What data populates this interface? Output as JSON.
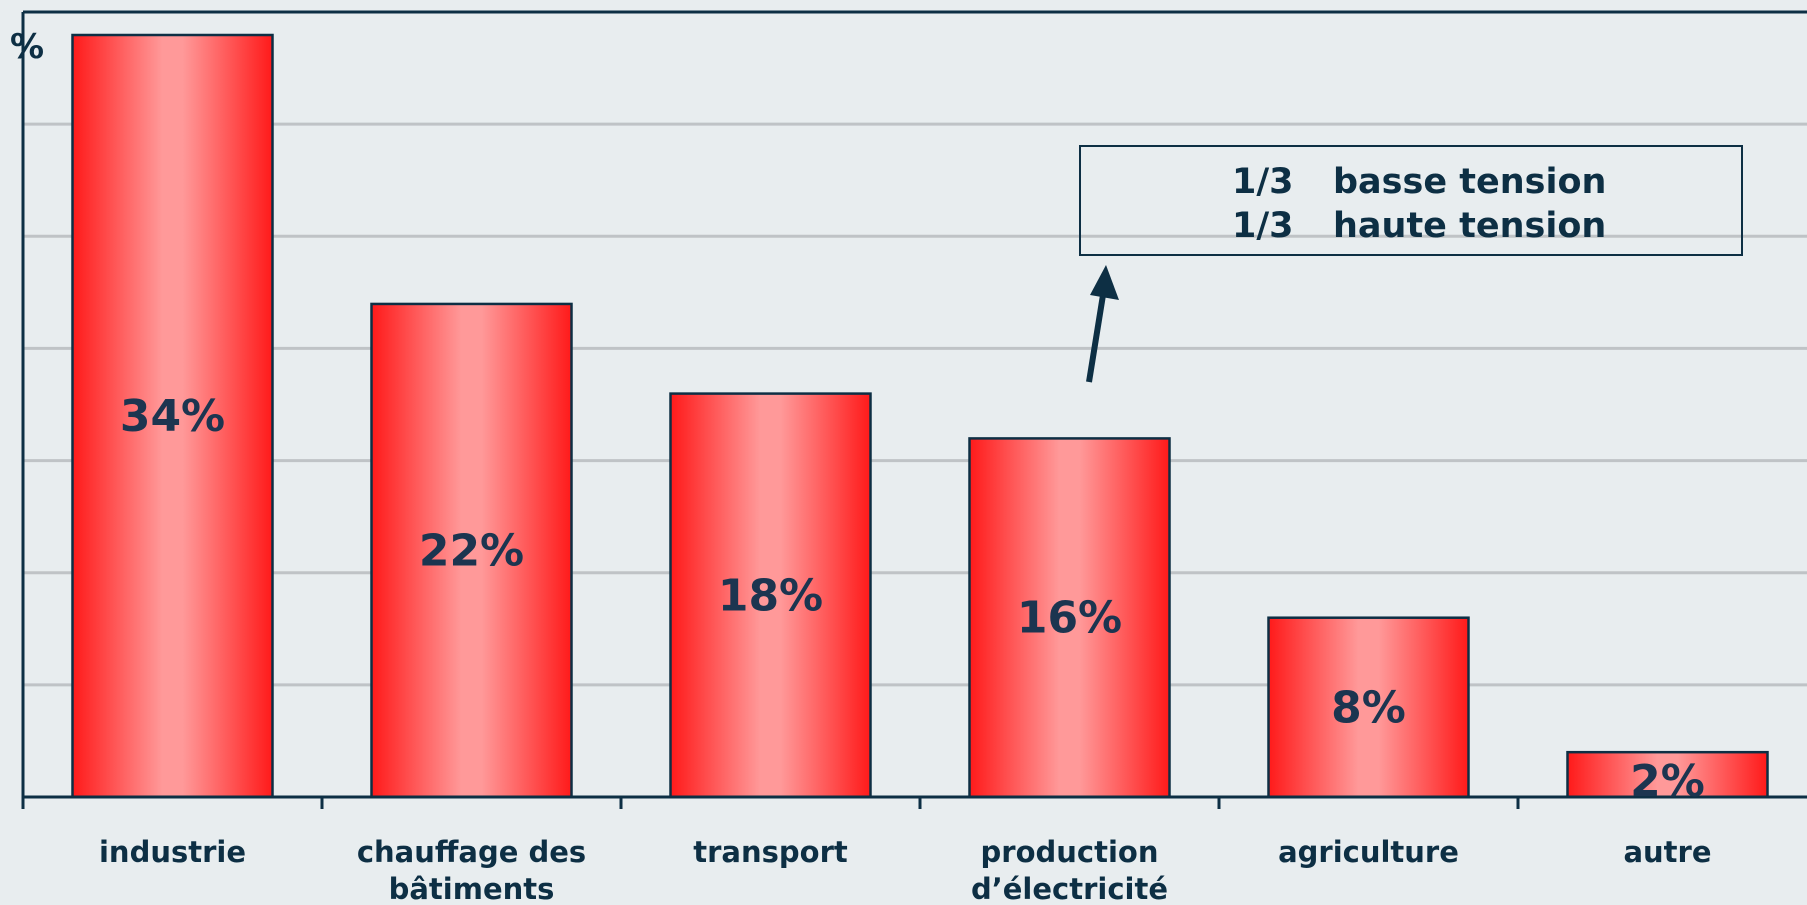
{
  "chart_data": {
    "type": "bar",
    "ylabel": "%",
    "ylim": [
      0,
      34
    ],
    "grid": true,
    "categories": [
      [
        "industrie"
      ],
      [
        "chauffage des",
        "bâtiments"
      ],
      [
        "transport"
      ],
      [
        "production",
        "d’électricité"
      ],
      [
        "agriculture"
      ],
      [
        "autre"
      ]
    ],
    "values": [
      34,
      22,
      18,
      16,
      8,
      2
    ],
    "data_labels": [
      "34%",
      "22%",
      "18%",
      "16%",
      "8%",
      "2%"
    ],
    "annotation": {
      "lines": [
        {
          "fraction": "1/3",
          "text": "basse tension"
        },
        {
          "fraction": "1/3",
          "text": "haute tension"
        }
      ],
      "points_to": "production d’électricité"
    }
  },
  "colors": {
    "background": "#e8edef",
    "bar_edge": "#ff1a1a",
    "bar_center": "#ff9999",
    "outline": "#0d2f44",
    "gridline": "#bfc3c6"
  }
}
